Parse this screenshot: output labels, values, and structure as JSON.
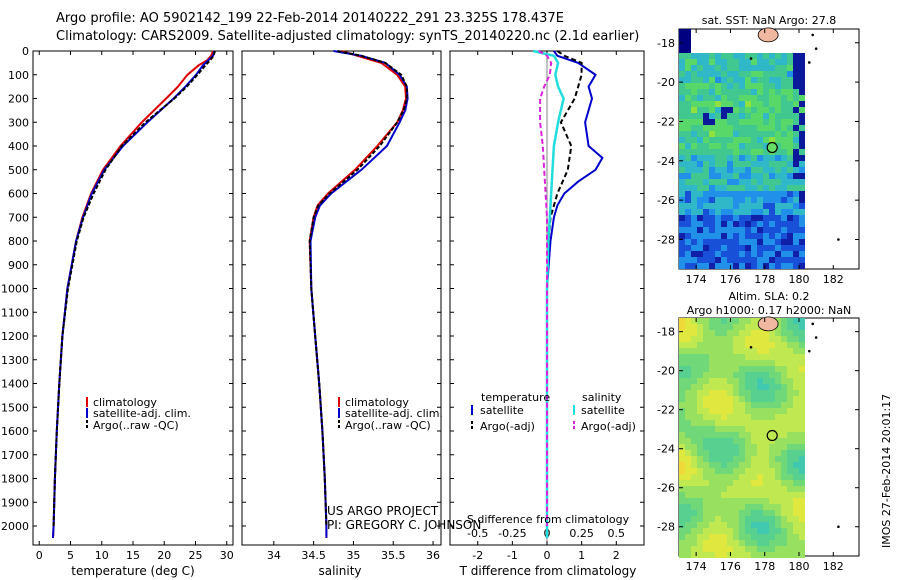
{
  "header": {
    "line1": "Argo profile: AO 5902142_199 22-Feb-2014 20140222_291 23.325S 178.437E",
    "line2": "Climatology: CARS2009. Satellite-adjusted climatology: synTS_20140220.nc (2.1d earlier)"
  },
  "colors": {
    "climatology": "#dd0000",
    "satellite": "#0000cc",
    "argo": "#000000",
    "sat_salinity": "#22dddd",
    "argo_salinity": "#dd22dd"
  },
  "chart_data": [
    {
      "type": "line",
      "id": "temperature",
      "xlabel": "temperature (deg C)",
      "ylabel": "",
      "xlim": [
        -1,
        31
      ],
      "ylim": [
        2080,
        0
      ],
      "xticks": [
        "0",
        "5",
        "10",
        "15",
        "20",
        "25",
        "30"
      ],
      "yticks": [
        "0",
        "100",
        "200",
        "300",
        "400",
        "500",
        "600",
        "700",
        "800",
        "900",
        "1000",
        "1100",
        "1200",
        "1300",
        "1400",
        "1500",
        "1600",
        "1700",
        "1800",
        "1900",
        "2000"
      ],
      "legend": [
        "climatology",
        "satellite-adj. clim.",
        "Argo(..raw -QC)"
      ],
      "series": [
        {
          "name": "climatology",
          "depth": [
            0,
            20,
            40,
            60,
            100,
            150,
            200,
            300,
            400,
            500,
            600,
            700,
            800,
            1000,
            1200,
            1400,
            1600,
            1800,
            2000,
            2050
          ],
          "values": [
            27.8,
            27.5,
            26.8,
            25.5,
            23.7,
            22.2,
            20.3,
            16.4,
            13.0,
            10.2,
            8.3,
            6.9,
            5.9,
            4.5,
            3.7,
            3.2,
            2.8,
            2.5,
            2.3,
            2.2
          ]
        },
        {
          "name": "satellite-adj. clim.",
          "depth": [
            0,
            20,
            40,
            60,
            100,
            150,
            200,
            300,
            400,
            500,
            600,
            700,
            800,
            1000,
            1200,
            1400,
            1600,
            1800,
            2000,
            2050
          ],
          "values": [
            28.0,
            27.8,
            27.0,
            26.2,
            25.1,
            23.4,
            21.5,
            17.3,
            13.4,
            10.4,
            8.4,
            7.0,
            5.9,
            4.5,
            3.7,
            3.2,
            2.8,
            2.5,
            2.3,
            2.2
          ]
        },
        {
          "name": "Argo(..raw -QC)",
          "depth": [
            0,
            20,
            40,
            60,
            100,
            150,
            200,
            300,
            400,
            500,
            600,
            700,
            800,
            1000,
            1200,
            1400,
            1600,
            1800,
            2000
          ],
          "values": [
            28.1,
            27.9,
            27.3,
            26.6,
            25.3,
            23.6,
            21.6,
            17.0,
            13.2,
            10.6,
            8.7,
            7.1,
            6.0,
            4.6,
            3.7,
            3.2,
            2.8,
            2.5,
            2.3
          ]
        }
      ]
    },
    {
      "type": "line",
      "id": "salinity",
      "xlabel": "salinity",
      "ylabel": "",
      "xlim": [
        33.6,
        36.1
      ],
      "ylim": [
        2080,
        0
      ],
      "xticks": [
        "34",
        "34.5",
        "35",
        "35.5",
        "36"
      ],
      "legend": [
        "climatology",
        "satellite-adj. clim.",
        "Argo(..raw -QC)"
      ],
      "series": [
        {
          "name": "climatology",
          "depth": [
            0,
            20,
            50,
            100,
            150,
            200,
            250,
            300,
            400,
            500,
            600,
            650,
            700,
            800,
            1000,
            1200,
            1400,
            1600,
            1800,
            2000,
            2050
          ],
          "values": [
            34.85,
            35.05,
            35.35,
            35.55,
            35.65,
            35.66,
            35.62,
            35.55,
            35.3,
            35.02,
            34.68,
            34.55,
            34.5,
            34.45,
            34.47,
            34.52,
            34.57,
            34.61,
            34.64,
            34.66,
            34.66
          ]
        },
        {
          "name": "satellite-adj. clim.",
          "depth": [
            0,
            20,
            50,
            100,
            150,
            200,
            250,
            300,
            400,
            500,
            600,
            650,
            700,
            800,
            1000,
            1200,
            1400,
            1600,
            1800,
            2000,
            2050
          ],
          "values": [
            34.75,
            35.1,
            35.4,
            35.58,
            35.67,
            35.68,
            35.65,
            35.58,
            35.42,
            35.1,
            34.72,
            34.58,
            34.52,
            34.46,
            34.47,
            34.52,
            34.57,
            34.61,
            34.64,
            34.66,
            34.66
          ]
        },
        {
          "name": "Argo(..raw -QC)",
          "depth": [
            0,
            20,
            50,
            100,
            150,
            200,
            250,
            300,
            400,
            500,
            600,
            650,
            700,
            800,
            1000,
            1200,
            1400,
            1600,
            1800,
            2000
          ],
          "values": [
            34.8,
            35.1,
            35.4,
            35.6,
            35.67,
            35.67,
            35.63,
            35.55,
            35.33,
            35.05,
            34.7,
            34.56,
            34.5,
            34.45,
            34.47,
            34.52,
            34.57,
            34.61,
            34.64,
            34.66
          ]
        }
      ]
    },
    {
      "type": "line",
      "id": "differences",
      "xlabel": "T difference from climatology",
      "xlabel2": "S difference from climatology",
      "xlim": [
        -2.8,
        2.8
      ],
      "ylim": [
        2080,
        0
      ],
      "xticks": [
        "-2",
        "-1",
        "0",
        "1",
        "2"
      ],
      "xticks2": [
        "-0.5",
        "-0.25",
        "0",
        "0.25",
        "0.5"
      ],
      "legend_titles": [
        "temperature",
        "salinity"
      ],
      "legend": [
        "satellite",
        "Argo(-adj)",
        "satellite",
        "Argo(-adj)"
      ],
      "series": [
        {
          "name": "T satellite",
          "depth": [
            0,
            20,
            50,
            100,
            150,
            200,
            300,
            400,
            450,
            500,
            550,
            600,
            650,
            700,
            800,
            900,
            1000,
            1200,
            1500,
            1800,
            2050
          ],
          "values": [
            0.2,
            0.3,
            0.9,
            1.4,
            1.2,
            1.3,
            1.1,
            1.2,
            1.6,
            1.4,
            0.9,
            0.5,
            0.3,
            0.2,
            0.1,
            0.05,
            0.0,
            0.0,
            0.0,
            0.0,
            0.0
          ]
        },
        {
          "name": "T Argo(-adj)",
          "depth": [
            0,
            20,
            50,
            100,
            150,
            200,
            300,
            400,
            500,
            600,
            700,
            800,
            1000,
            1200,
            1500,
            1800,
            2000
          ],
          "values": [
            0.3,
            0.5,
            1.0,
            1.0,
            0.9,
            0.8,
            0.4,
            0.7,
            0.6,
            0.3,
            0.1,
            0.05,
            0.0,
            0.0,
            0.0,
            0.0,
            0.0
          ]
        },
        {
          "name": "S satellite",
          "depth": [
            0,
            20,
            50,
            100,
            150,
            200,
            300,
            400,
            500,
            600,
            700,
            800,
            1000,
            1200,
            1500,
            1800,
            2050
          ],
          "values": [
            -0.1,
            0.05,
            0.08,
            0.06,
            0.08,
            0.12,
            0.08,
            0.05,
            0.04,
            0.03,
            0.02,
            0.01,
            0.0,
            0.0,
            0.0,
            0.0,
            0.0
          ]
        },
        {
          "name": "S Argo(-adj)",
          "depth": [
            0,
            20,
            50,
            100,
            150,
            200,
            300,
            400,
            500,
            600,
            700,
            800,
            1000,
            1200,
            1500,
            1800,
            2000
          ],
          "values": [
            -0.06,
            0.0,
            0.03,
            0.02,
            -0.02,
            -0.05,
            -0.05,
            -0.03,
            -0.02,
            -0.01,
            0.0,
            0.0,
            0.0,
            0.0,
            0.0,
            0.0,
            0.0
          ]
        }
      ]
    },
    {
      "type": "heatmap",
      "id": "sst-map",
      "title": "sat. SST: NaN Argo: 27.8",
      "xticks": [
        "174",
        "176",
        "178",
        "180",
        "182"
      ],
      "yticks": [
        "-18",
        "-20",
        "-22",
        "-24",
        "-26",
        "-28"
      ],
      "xlim": [
        173,
        183.5
      ],
      "ylim": [
        -29.5,
        -17.3
      ],
      "point": {
        "lon": 178.437,
        "lat": -23.325
      }
    },
    {
      "type": "heatmap",
      "id": "sla-map",
      "title": "Altim. SLA: 0.2",
      "title2": "Argo h1000: 0.17 h2000: NaN",
      "xticks": [
        "174",
        "176",
        "178",
        "180",
        "182"
      ],
      "yticks": [
        "-18",
        "-20",
        "-22",
        "-24",
        "-26",
        "-28"
      ],
      "xlim": [
        173,
        183.5
      ],
      "ylim": [
        -29.5,
        -17.3
      ],
      "point": {
        "lon": 178.437,
        "lat": -23.325
      }
    }
  ],
  "credits": {
    "project": "US ARGO PROJECT",
    "pi": "PI: GREGORY C. JOHNSON"
  },
  "footer": {
    "imos": "IMOS 27-Feb-2014 20:01:17"
  }
}
